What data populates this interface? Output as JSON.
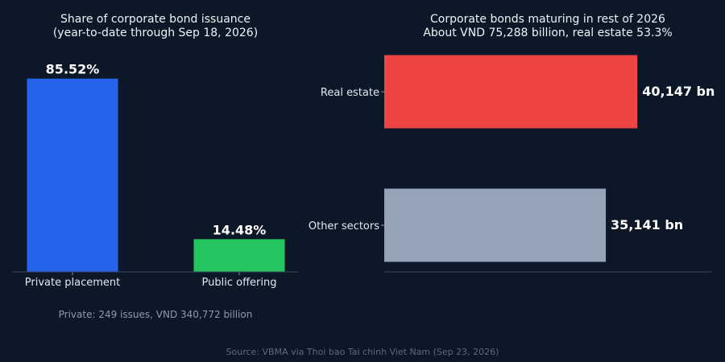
{
  "chart_data": [
    {
      "type": "bar",
      "title": "Share of corporate bond issuance",
      "subtitle": "(year-to-date through Sep 18, 2026)",
      "categories": [
        "Private placement",
        "Public offering"
      ],
      "values": [
        85.52,
        14.48
      ],
      "value_labels": [
        "85.52%",
        "14.48%"
      ],
      "ylim": [
        0,
        100
      ],
      "colors": [
        "#2563eb",
        "#22c55e"
      ],
      "note": "Private: 249 issues, VND 340,772 billion",
      "grid": false
    },
    {
      "type": "bar",
      "orientation": "horizontal",
      "title": "Corporate bonds maturing in rest of 2026",
      "subtitle": "About VND 75,288 billion, real estate 53.3%",
      "categories": [
        "Real estate",
        "Other sectors"
      ],
      "values": [
        40147,
        35141
      ],
      "value_labels": [
        "40,147 bn",
        "35,141 bn"
      ],
      "xlim": [
        0,
        52000
      ],
      "colors": [
        "#ef4444",
        "#94a3b8"
      ],
      "grid": false
    }
  ],
  "source": "Source: VBMA via Thoi bao Tai chinh Viet Nam (Sep 23, 2026)"
}
